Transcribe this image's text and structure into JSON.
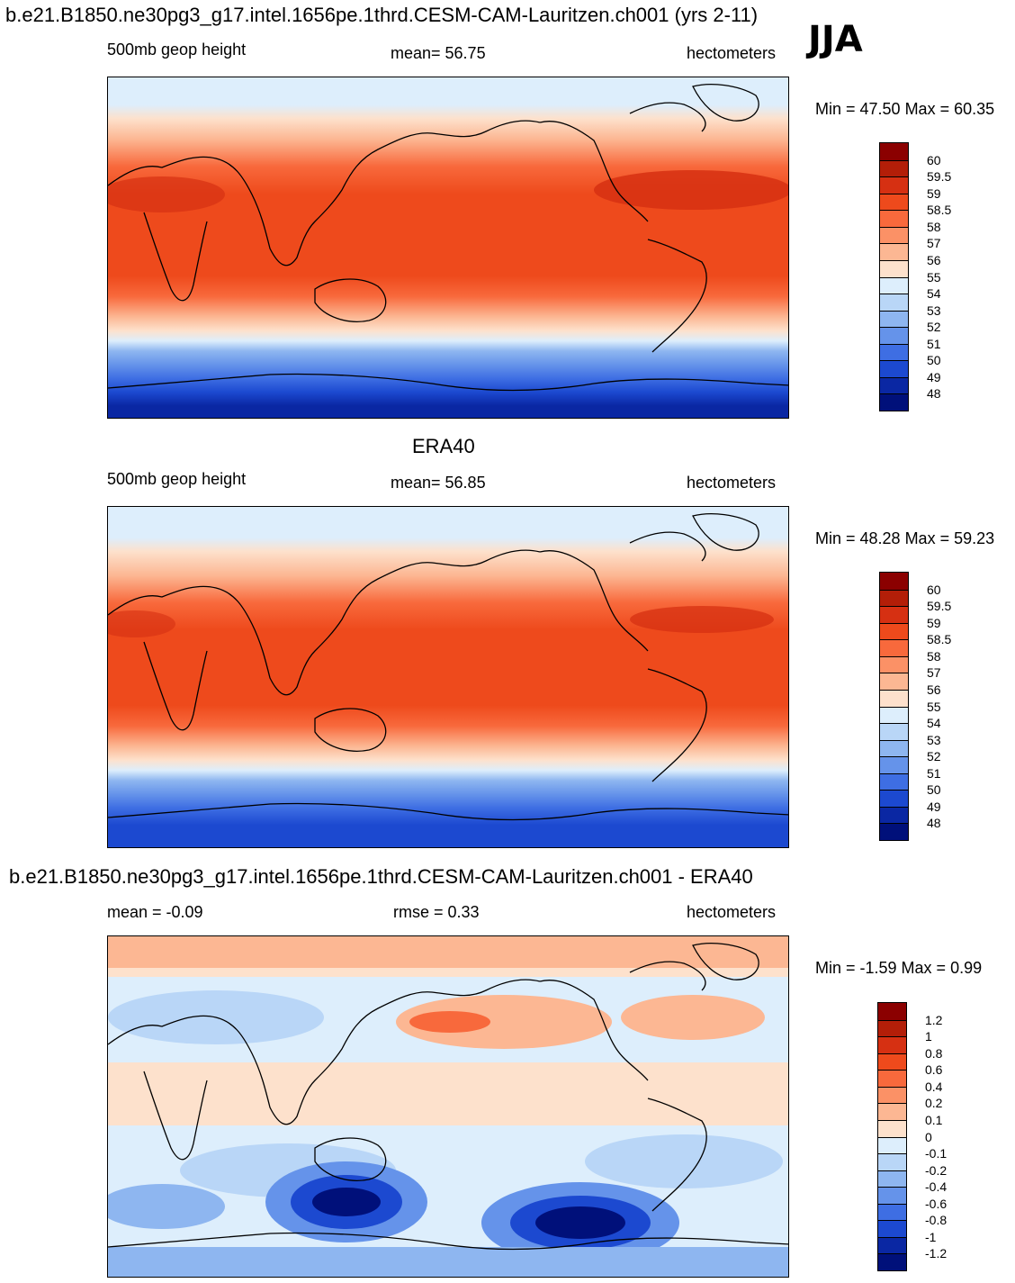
{
  "season": "JJA",
  "panels": [
    {
      "title": "b.e21.B1850.ne30pg3_g17.intel.1656pe.1thrd.CESM-CAM-Lauritzen.ch001 (yrs 2-11)",
      "left": "500mb geop height",
      "center": "mean=  56.75",
      "right": "hectometers",
      "minmax": "Min =  47.50 Max =  60.35",
      "colorbar": {
        "labels": [
          "60",
          "59.5",
          "59",
          "58.5",
          "58",
          "57",
          "56",
          "55",
          "54",
          "53",
          "52",
          "51",
          "50",
          "49",
          "48"
        ],
        "colors": [
          "#8b0000",
          "#b31e08",
          "#d63012",
          "#ee4a1c",
          "#f8693c",
          "#fb9166",
          "#fcb793",
          "#fde1cc",
          "#ddeefc",
          "#b9d6f7",
          "#8eb6f0",
          "#6593ea",
          "#3e6ee3",
          "#1c49d0",
          "#0a27a3",
          "#00107a"
        ]
      }
    },
    {
      "title": "ERA40",
      "left": "500mb geop height",
      "center": "mean=  56.85",
      "right": "hectometers",
      "minmax": "Min =  48.28 Max =  59.23",
      "colorbar": {
        "labels": [
          "60",
          "59.5",
          "59",
          "58.5",
          "58",
          "57",
          "56",
          "55",
          "54",
          "53",
          "52",
          "51",
          "50",
          "49",
          "48"
        ],
        "colors": [
          "#8b0000",
          "#b31e08",
          "#d63012",
          "#ee4a1c",
          "#f8693c",
          "#fb9166",
          "#fcb793",
          "#fde1cc",
          "#ddeefc",
          "#b9d6f7",
          "#8eb6f0",
          "#6593ea",
          "#3e6ee3",
          "#1c49d0",
          "#0a27a3",
          "#00107a"
        ]
      }
    },
    {
      "title": "b.e21.B1850.ne30pg3_g17.intel.1656pe.1thrd.CESM-CAM-Lauritzen.ch001 - ERA40",
      "left": "mean =  -0.09",
      "center": "rmse =   0.33",
      "right": "hectometers",
      "minmax": "Min =  -1.59 Max =   0.99",
      "colorbar": {
        "labels": [
          "1.2",
          "1",
          "0.8",
          "0.6",
          "0.4",
          "0.2",
          "0.1",
          "0",
          "-0.1",
          "-0.2",
          "-0.4",
          "-0.6",
          "-0.8",
          "-1",
          "-1.2"
        ],
        "colors": [
          "#8b0000",
          "#b31e08",
          "#d63012",
          "#ee4a1c",
          "#f8693c",
          "#fb9166",
          "#fcb793",
          "#fde1cc",
          "#ddeefc",
          "#b9d6f7",
          "#8eb6f0",
          "#6593ea",
          "#3e6ee3",
          "#1c49d0",
          "#0a27a3",
          "#00107a"
        ]
      }
    }
  ]
}
